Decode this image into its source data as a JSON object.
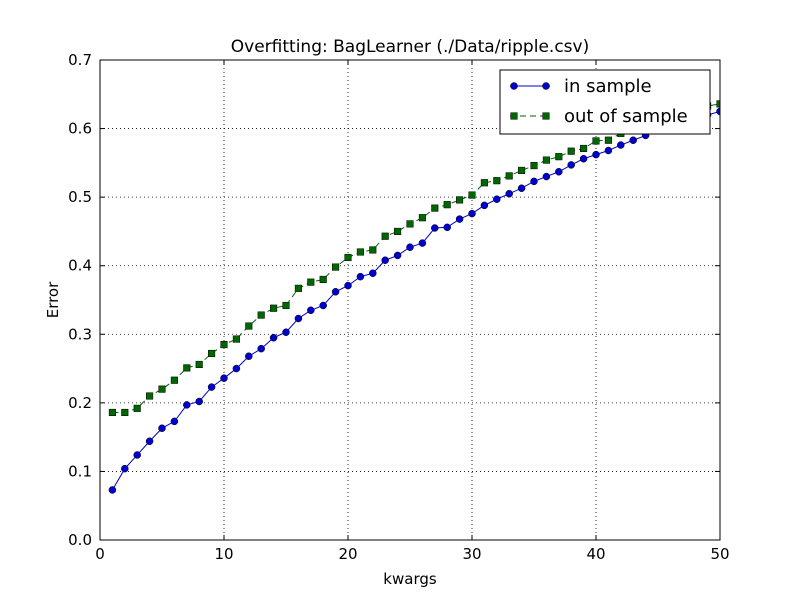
{
  "chart_data": {
    "type": "line",
    "title": "Overfitting: BagLearner (./Data/ripple.csv)",
    "xlabel": "kwargs",
    "ylabel": "Error",
    "xlim": [
      0,
      50
    ],
    "ylim": [
      0.0,
      0.7
    ],
    "x_ticks": [
      "0",
      "10",
      "20",
      "30",
      "40",
      "50"
    ],
    "y_ticks": [
      "0.0",
      "0.1",
      "0.2",
      "0.3",
      "0.4",
      "0.5",
      "0.6",
      "0.7"
    ],
    "grid": true,
    "legend_position": "top-right",
    "x": [
      1,
      2,
      3,
      4,
      5,
      6,
      7,
      8,
      9,
      10,
      11,
      12,
      13,
      14,
      15,
      16,
      17,
      18,
      19,
      20,
      21,
      22,
      23,
      24,
      25,
      26,
      27,
      28,
      29,
      30,
      31,
      32,
      33,
      34,
      35,
      36,
      37,
      38,
      39,
      40,
      41,
      42,
      43,
      44,
      45,
      46,
      47,
      48,
      49,
      50
    ],
    "series": [
      {
        "name": "in sample",
        "color": "#0000cc",
        "marker": "circle",
        "linestyle": "solid",
        "values": [
          0.073,
          0.104,
          0.124,
          0.144,
          0.163,
          0.173,
          0.197,
          0.202,
          0.223,
          0.236,
          0.25,
          0.268,
          0.279,
          0.295,
          0.303,
          0.323,
          0.335,
          0.342,
          0.362,
          0.371,
          0.384,
          0.389,
          0.408,
          0.415,
          0.427,
          0.433,
          0.455,
          0.456,
          0.468,
          0.476,
          0.488,
          0.497,
          0.505,
          0.513,
          0.523,
          0.53,
          0.537,
          0.547,
          0.556,
          0.562,
          0.568,
          0.576,
          0.583,
          0.59,
          0.597,
          0.603,
          0.609,
          0.615,
          0.62,
          0.625
        ]
      },
      {
        "name": "out of sample",
        "color": "#006600",
        "marker": "square",
        "linestyle": "dashed",
        "values": [
          0.186,
          0.186,
          0.192,
          0.21,
          0.22,
          0.233,
          0.251,
          0.256,
          0.272,
          0.285,
          0.293,
          0.312,
          0.328,
          0.338,
          0.342,
          0.367,
          0.376,
          0.38,
          0.398,
          0.412,
          0.42,
          0.423,
          0.443,
          0.45,
          0.461,
          0.47,
          0.484,
          0.489,
          0.496,
          0.503,
          0.521,
          0.524,
          0.531,
          0.539,
          0.546,
          0.554,
          0.559,
          0.567,
          0.571,
          0.582,
          0.583,
          0.593,
          0.598,
          0.606,
          0.61,
          0.615,
          0.621,
          0.627,
          0.633,
          0.636
        ]
      }
    ]
  }
}
